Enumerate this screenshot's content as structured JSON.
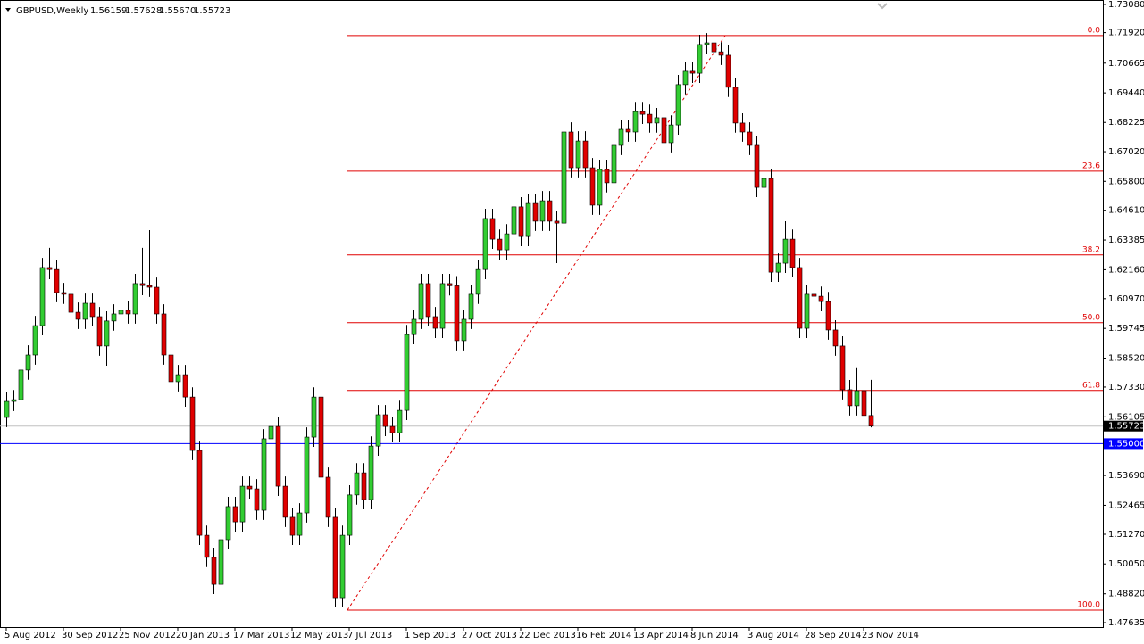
{
  "chart_data": {
    "type": "candlestick",
    "title": "GBPUSD,Weekly",
    "quote": [
      "1.56159",
      "1.57628",
      "1.55670",
      "1.55723"
    ],
    "categories": [
      "5 Aug 2012",
      null,
      null,
      null,
      null,
      null,
      null,
      null,
      "30 Sep 2012",
      null,
      null,
      null,
      null,
      null,
      null,
      null,
      "25 Nov 2012",
      null,
      null,
      null,
      null,
      null,
      null,
      null,
      "20 Jan 2013",
      null,
      null,
      null,
      null,
      null,
      null,
      null,
      "17 Mar 2013",
      null,
      null,
      null,
      null,
      null,
      null,
      null,
      "12 May 2013",
      null,
      null,
      null,
      null,
      null,
      null,
      null,
      "7 Jul 2013",
      null,
      null,
      null,
      null,
      null,
      null,
      null,
      "1 Sep 2013",
      null,
      null,
      null,
      null,
      null,
      null,
      null,
      "27 Oct 2013",
      null,
      null,
      null,
      null,
      null,
      null,
      null,
      "22 Dec 2013",
      null,
      null,
      null,
      null,
      null,
      null,
      null,
      "16 Feb 2014",
      null,
      null,
      null,
      null,
      null,
      null,
      null,
      "13 Apr 2014",
      null,
      null,
      null,
      null,
      null,
      null,
      null,
      "8 Jun 2014",
      null,
      null,
      null,
      null,
      null,
      null,
      null,
      "3 Aug 2014",
      null,
      null,
      null,
      null,
      null,
      null,
      null,
      "28 Sep 2014",
      null,
      null,
      null,
      null,
      null,
      null,
      null,
      "23 Nov 2014",
      null
    ],
    "open": [
      1.5608,
      1.5674,
      1.5681,
      1.5803,
      1.5865,
      1.5986,
      1.6225,
      1.6217,
      1.6122,
      1.6115,
      1.6041,
      1.6012,
      1.6078,
      1.6023,
      1.5902,
      1.6005,
      1.6034,
      1.6049,
      1.6034,
      1.6159,
      1.6151,
      1.6144,
      1.6034,
      1.5865,
      1.5755,
      1.5784,
      1.5692,
      1.5472,
      1.5123,
      1.5032,
      1.4921,
      1.5105,
      1.5241,
      1.5178,
      1.5325,
      1.5314,
      1.5226,
      1.552,
      1.5571,
      1.5325,
      1.5197,
      1.5123,
      1.5215,
      1.5527,
      1.5692,
      1.5362,
      1.5197,
      1.4866,
      1.5123,
      1.5289,
      1.538,
      1.527,
      1.549,
      1.5619,
      1.5571,
      1.5545,
      1.5637,
      1.5949,
      1.6012,
      1.6159,
      1.6023,
      1.5975,
      1.6159,
      1.615,
      1.5924,
      1.6012,
      1.6115,
      1.6217,
      1.6427,
      1.6342,
      1.6298,
      1.6364,
      1.6475,
      1.6353,
      1.6489,
      1.6416,
      1.65,
      1.6416,
      1.6408,
      1.6783,
      1.6636,
      1.6746,
      1.6636,
      1.6482,
      1.6629,
      1.6574,
      1.6728,
      1.6794,
      1.6783,
      1.6867,
      1.6856,
      1.682,
      1.6842,
      1.6739,
      1.6812,
      1.6978,
      1.7033,
      1.7025,
      1.7143,
      1.715,
      1.7113,
      1.7099,
      1.6967,
      1.682,
      1.6783,
      1.6728,
      1.6555,
      1.6592,
      1.6206,
      1.6243,
      1.6342,
      1.6225,
      1.5975,
      1.6115,
      1.6107,
      1.6085,
      1.5968,
      1.5902,
      1.5722,
      1.5656,
      1.5718,
      1.56159
    ],
    "high": [
      1.5714,
      1.5721,
      1.5843,
      1.5905,
      1.6026,
      1.6265,
      1.6306,
      1.6257,
      1.6162,
      1.6155,
      1.6081,
      1.6118,
      1.6118,
      1.6063,
      1.6045,
      1.6074,
      1.6089,
      1.6089,
      1.6199,
      1.6306,
      1.6379,
      1.6184,
      1.6074,
      1.5905,
      1.5824,
      1.5824,
      1.5732,
      1.5512,
      1.5163,
      1.5072,
      1.5145,
      1.5281,
      1.5281,
      1.5365,
      1.5365,
      1.5354,
      1.556,
      1.5611,
      1.5611,
      1.5365,
      1.5237,
      1.5255,
      1.5567,
      1.5732,
      1.5732,
      1.5402,
      1.5237,
      1.5163,
      1.5329,
      1.542,
      1.542,
      1.553,
      1.5659,
      1.5659,
      1.5611,
      1.5677,
      1.5989,
      1.6052,
      1.6199,
      1.6199,
      1.6063,
      1.6199,
      1.6199,
      1.619,
      1.6052,
      1.6155,
      1.6257,
      1.6467,
      1.6467,
      1.6382,
      1.6404,
      1.6515,
      1.6515,
      1.6529,
      1.6529,
      1.654,
      1.654,
      1.6456,
      1.6823,
      1.6823,
      1.6786,
      1.6786,
      1.6676,
      1.6669,
      1.6669,
      1.6768,
      1.6834,
      1.6834,
      1.6907,
      1.6907,
      1.6896,
      1.6882,
      1.6882,
      1.6852,
      1.7018,
      1.7073,
      1.7073,
      1.7183,
      1.719,
      1.719,
      1.7153,
      1.7139,
      1.7007,
      1.686,
      1.6823,
      1.6768,
      1.6632,
      1.6632,
      1.6283,
      1.6416,
      1.6382,
      1.6265,
      1.6155,
      1.6155,
      1.6147,
      1.6125,
      1.6008,
      1.5942,
      1.5762,
      1.5811,
      1.5758,
      1.57628
    ],
    "low": [
      1.5568,
      1.5634,
      1.5641,
      1.5763,
      1.5825,
      1.5946,
      1.6177,
      1.6082,
      1.6075,
      1.6001,
      1.5972,
      1.5972,
      1.5983,
      1.5862,
      1.5821,
      1.5965,
      1.5994,
      1.5994,
      1.5994,
      1.6111,
      1.6104,
      1.5994,
      1.5825,
      1.5715,
      1.5715,
      1.5652,
      1.5432,
      1.5083,
      1.4992,
      1.4881,
      1.4829,
      1.5065,
      1.5138,
      1.5138,
      1.5274,
      1.5186,
      1.5186,
      1.548,
      1.5285,
      1.5157,
      1.5083,
      1.5083,
      1.5175,
      1.5487,
      1.5322,
      1.5157,
      1.4826,
      1.4826,
      1.5083,
      1.5249,
      1.523,
      1.523,
      1.545,
      1.5531,
      1.5505,
      1.5505,
      1.5597,
      1.5909,
      1.5972,
      1.5983,
      1.5935,
      1.5935,
      1.611,
      1.5884,
      1.5884,
      1.5972,
      1.6075,
      1.6177,
      1.6302,
      1.6258,
      1.6258,
      1.6324,
      1.6313,
      1.6313,
      1.6376,
      1.6376,
      1.6376,
      1.6243,
      1.6368,
      1.6596,
      1.6596,
      1.6596,
      1.6442,
      1.6442,
      1.6534,
      1.6534,
      1.6688,
      1.6743,
      1.6743,
      1.6816,
      1.678,
      1.678,
      1.6699,
      1.6699,
      1.6772,
      1.6938,
      1.6985,
      1.6985,
      1.7103,
      1.7073,
      1.7059,
      1.6927,
      1.678,
      1.6743,
      1.6688,
      1.6515,
      1.6515,
      1.6166,
      1.6166,
      1.6203,
      1.6185,
      1.5935,
      1.5935,
      1.6067,
      1.6045,
      1.5928,
      1.5862,
      1.5682,
      1.5616,
      1.5616,
      1.5576,
      1.5567
    ],
    "close": [
      1.5674,
      1.5681,
      1.5803,
      1.5865,
      1.5986,
      1.6225,
      1.6217,
      1.6122,
      1.6115,
      1.6041,
      1.6012,
      1.6078,
      1.6023,
      1.5902,
      1.6005,
      1.6034,
      1.6049,
      1.6034,
      1.6159,
      1.6151,
      1.6144,
      1.6034,
      1.5865,
      1.5755,
      1.5784,
      1.5692,
      1.5472,
      1.5123,
      1.5032,
      1.4921,
      1.5105,
      1.5241,
      1.5178,
      1.5325,
      1.5314,
      1.5226,
      1.552,
      1.5571,
      1.5325,
      1.5197,
      1.5123,
      1.5215,
      1.5527,
      1.5692,
      1.5362,
      1.5197,
      1.4866,
      1.5123,
      1.5289,
      1.538,
      1.527,
      1.549,
      1.5619,
      1.5571,
      1.5545,
      1.5637,
      1.5949,
      1.6012,
      1.6159,
      1.6023,
      1.5975,
      1.6159,
      1.615,
      1.5924,
      1.6012,
      1.6115,
      1.6217,
      1.6427,
      1.6342,
      1.6298,
      1.6364,
      1.6475,
      1.6353,
      1.6489,
      1.6416,
      1.65,
      1.6416,
      1.6408,
      1.6783,
      1.6636,
      1.6746,
      1.6636,
      1.6482,
      1.6629,
      1.6574,
      1.6728,
      1.6794,
      1.6783,
      1.6867,
      1.6856,
      1.682,
      1.6842,
      1.6739,
      1.6812,
      1.6978,
      1.7033,
      1.7025,
      1.7143,
      1.715,
      1.7113,
      1.7099,
      1.6967,
      1.682,
      1.6783,
      1.6728,
      1.6555,
      1.6592,
      1.6206,
      1.6243,
      1.6342,
      1.6225,
      1.5975,
      1.6115,
      1.6107,
      1.6085,
      1.5968,
      1.5902,
      1.5722,
      1.5656,
      1.5718,
      1.56159,
      1.55723
    ],
    "bull_color": "#32cd32",
    "bear_color": "#e00000",
    "ylim": [
      1.47451,
      1.73264
    ],
    "yticks": [
      {
        "value": 1.7308,
        "label": "1.73080"
      },
      {
        "value": 1.7192,
        "label": "1.71920"
      },
      1.70665,
      {
        "value": 1.6944,
        "label": "1.69440"
      },
      1.68225,
      {
        "value": 1.6702,
        "label": "1.67020"
      },
      {
        "value": 1.658,
        "label": "1.65800"
      },
      {
        "value": 1.6461,
        "label": "1.64610"
      },
      1.63385,
      {
        "value": 1.6216,
        "label": "1.62160"
      },
      {
        "value": 1.6097,
        "label": "1.60970"
      },
      1.59745,
      {
        "value": 1.5852,
        "label": "1.58520"
      },
      {
        "value": 1.5733,
        "label": "1.57330"
      },
      1.56105,
      {
        "value": 1.5369,
        "label": "1.53690"
      },
      1.52465,
      {
        "value": 1.5127,
        "label": "1.51270"
      },
      {
        "value": 1.5005,
        "label": "1.50050"
      },
      {
        "value": 1.4882,
        "label": "1.48820"
      },
      1.47635
    ],
    "bid": 1.55723,
    "hline": {
      "value": 1.55,
      "label": "1.55000",
      "color": "#0000ff"
    },
    "fibonacci": {
      "color": "#e00000",
      "levels": [
        {
          "label": "0.0",
          "price": 1.718
        },
        {
          "label": "23.6",
          "price": 1.6622
        },
        {
          "label": "38.2",
          "price": 1.6277
        },
        {
          "label": "50.0",
          "price": 1.5998
        },
        {
          "label": "61.8",
          "price": 1.5719
        },
        {
          "label": "100.0",
          "price": 1.4815
        }
      ]
    }
  }
}
